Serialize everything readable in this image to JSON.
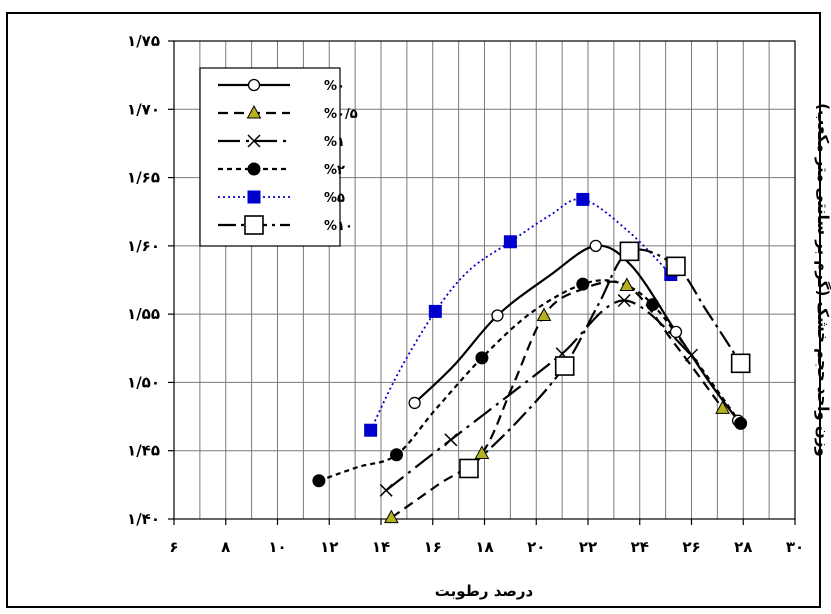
{
  "chart_data": {
    "type": "line",
    "xlabel": "درصد رطوبت",
    "ylabel": "وزن واحد حجم خشک (گرم بر سانتی متر مکعب)",
    "xlim": [
      6,
      30
    ],
    "ylim": [
      1.4,
      1.75
    ],
    "x_ticks": [
      6,
      8,
      10,
      12,
      14,
      16,
      18,
      20,
      22,
      24,
      26,
      28,
      30
    ],
    "x_tick_labels": [
      "۶",
      "۸",
      "۱۰",
      "۱۲",
      "۱۴",
      "۱۶",
      "۱۸",
      "۲۰",
      "۲۲",
      "۲۴",
      "۲۶",
      "۲۸",
      "۳۰"
    ],
    "y_ticks": [
      1.4,
      1.45,
      1.5,
      1.55,
      1.6,
      1.65,
      1.7,
      1.75
    ],
    "y_tick_labels": [
      "۱/۴۰",
      "۱/۴۵",
      "۱/۵۰",
      "۱/۵۵",
      "۱/۶۰",
      "۱/۶۵",
      "۱/۷۰",
      "۱/۷۵"
    ],
    "x_minor_step": 1,
    "grid": true,
    "legend_position": "top-left",
    "series": [
      {
        "name": "%۰",
        "color": "#000000",
        "dash": "solid",
        "marker": "circle-open",
        "points": [
          [
            15.3,
            1.485
          ],
          [
            18.5,
            1.549
          ],
          [
            22.3,
            1.6
          ],
          [
            25.4,
            1.537
          ],
          [
            27.8,
            1.472
          ]
        ],
        "curve": [
          [
            15.3,
            1.485
          ],
          [
            16.8,
            1.512
          ],
          [
            18.5,
            1.549
          ],
          [
            20.5,
            1.578
          ],
          [
            22.3,
            1.6
          ],
          [
            23.7,
            1.585
          ],
          [
            25.4,
            1.537
          ],
          [
            26.7,
            1.5
          ],
          [
            27.8,
            1.472
          ]
        ]
      },
      {
        "name": "%۰/۵",
        "color": "#000000",
        "dash": "10,6",
        "marker": "triangle",
        "points": [
          [
            14.4,
            1.401
          ],
          [
            17.9,
            1.448
          ],
          [
            20.3,
            1.549
          ],
          [
            23.5,
            1.571
          ],
          [
            27.2,
            1.481
          ]
        ],
        "curve": [
          [
            14.4,
            1.401
          ],
          [
            16.2,
            1.425
          ],
          [
            17.9,
            1.448
          ],
          [
            19.1,
            1.498
          ],
          [
            20.3,
            1.549
          ],
          [
            21.6,
            1.567
          ],
          [
            23.5,
            1.571
          ],
          [
            25.4,
            1.527
          ],
          [
            27.2,
            1.481
          ]
        ]
      },
      {
        "name": "%۱",
        "color": "#000000",
        "dash": "22,6,3,6",
        "marker": "x",
        "points": [
          [
            14.2,
            1.421
          ],
          [
            16.7,
            1.458
          ],
          [
            21.0,
            1.521
          ],
          [
            23.4,
            1.56
          ],
          [
            26.0,
            1.52
          ]
        ],
        "curve": [
          [
            14.2,
            1.421
          ],
          [
            16.7,
            1.458
          ],
          [
            18.9,
            1.49
          ],
          [
            21.0,
            1.521
          ],
          [
            23.4,
            1.56
          ],
          [
            26.0,
            1.52
          ]
        ]
      },
      {
        "name": "%۲",
        "color": "#000000",
        "dash": "5,4",
        "marker": "circle-filled",
        "points": [
          [
            11.6,
            1.428
          ],
          [
            14.6,
            1.447
          ],
          [
            17.9,
            1.518
          ],
          [
            21.8,
            1.572
          ],
          [
            24.5,
            1.557
          ],
          [
            27.9,
            1.47
          ]
        ],
        "curve": [
          [
            11.6,
            1.428
          ],
          [
            13.1,
            1.438
          ],
          [
            14.6,
            1.447
          ],
          [
            16.1,
            1.48
          ],
          [
            17.9,
            1.518
          ],
          [
            19.8,
            1.551
          ],
          [
            21.8,
            1.572
          ],
          [
            23.2,
            1.573
          ],
          [
            24.5,
            1.557
          ],
          [
            26.2,
            1.515
          ],
          [
            27.9,
            1.47
          ]
        ]
      },
      {
        "name": "%۵",
        "color": "#0000cc",
        "dash": "2,3",
        "marker": "square-filled",
        "points": [
          [
            13.6,
            1.465
          ],
          [
            16.1,
            1.552
          ],
          [
            19.0,
            1.603
          ],
          [
            21.8,
            1.634
          ],
          [
            25.2,
            1.579
          ]
        ],
        "curve": [
          [
            13.6,
            1.465
          ],
          [
            14.7,
            1.508
          ],
          [
            16.1,
            1.552
          ],
          [
            17.4,
            1.582
          ],
          [
            19.0,
            1.603
          ],
          [
            20.5,
            1.622
          ],
          [
            21.8,
            1.634
          ],
          [
            23.6,
            1.61
          ],
          [
            25.2,
            1.579
          ]
        ]
      },
      {
        "name": "%۱۰",
        "color": "#000000",
        "dash": "18,5,3,5",
        "marker": "square-open-large",
        "points": [
          [
            17.4,
            1.437
          ],
          [
            21.1,
            1.512
          ],
          [
            23.6,
            1.596
          ],
          [
            25.4,
            1.585
          ],
          [
            27.9,
            1.514
          ]
        ],
        "curve": [
          [
            17.4,
            1.437
          ],
          [
            19.3,
            1.472
          ],
          [
            21.1,
            1.512
          ],
          [
            22.4,
            1.557
          ],
          [
            23.6,
            1.596
          ],
          [
            25.4,
            1.585
          ],
          [
            26.6,
            1.552
          ],
          [
            27.9,
            1.514
          ]
        ]
      }
    ]
  }
}
